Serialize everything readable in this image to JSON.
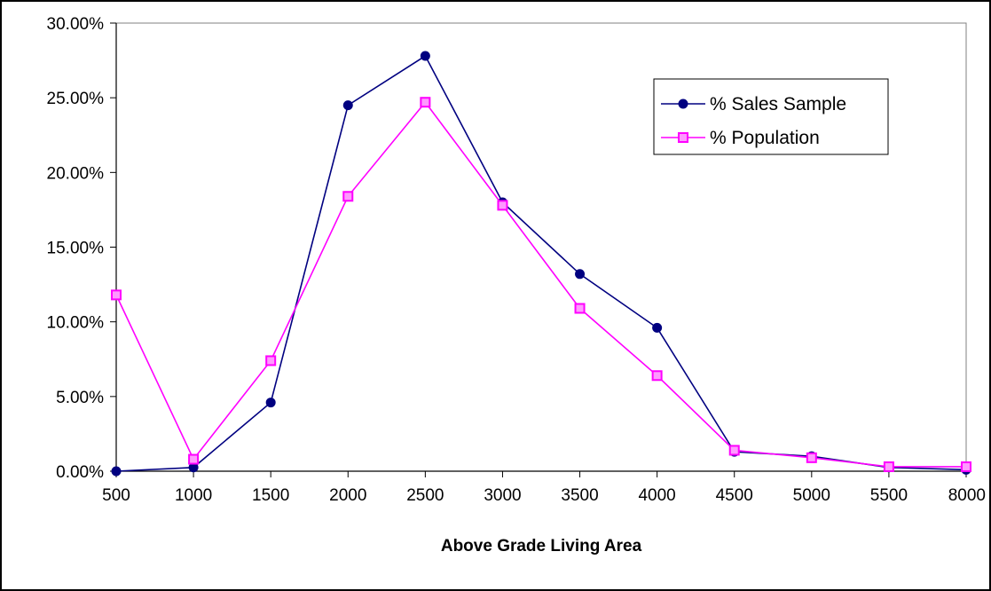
{
  "chart_data": {
    "type": "line",
    "title": "",
    "xlabel": "Above Grade Living Area",
    "ylabel": "",
    "categories": [
      "500",
      "1000",
      "1500",
      "2000",
      "2500",
      "3000",
      "3500",
      "4000",
      "4500",
      "5000",
      "5500",
      "8000"
    ],
    "ylim": [
      0,
      30
    ],
    "yticks": [
      0,
      5,
      10,
      15,
      20,
      25,
      30
    ],
    "ytick_labels": [
      "0.00%",
      "5.00%",
      "10.00%",
      "15.00%",
      "20.00%",
      "25.00%",
      "30.00%"
    ],
    "grid": false,
    "legend_position": "top-right",
    "series": [
      {
        "name": "% Sales Sample",
        "color": "#000080",
        "marker": "circle",
        "values": [
          0.0,
          0.25,
          4.6,
          24.5,
          27.8,
          18.0,
          13.2,
          9.6,
          1.3,
          1.0,
          0.25,
          0.1
        ]
      },
      {
        "name": "% Population",
        "color": "#FF00FF",
        "marker": "square",
        "values": [
          11.8,
          0.8,
          7.4,
          18.4,
          24.7,
          17.8,
          10.9,
          6.4,
          1.4,
          0.9,
          0.3,
          0.3
        ]
      }
    ]
  }
}
